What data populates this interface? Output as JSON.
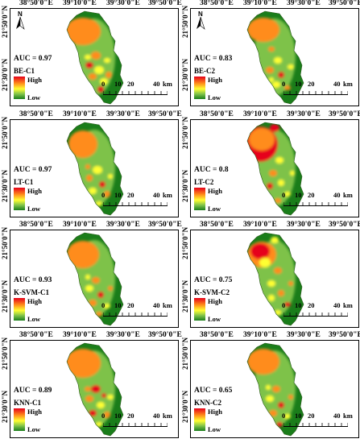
{
  "coords": {
    "top": [
      "38°50'0\"E",
      "39°10'0\"E",
      "39°30'0\"E",
      "39°50'0\"E"
    ],
    "left": [
      "21°50'0\"N",
      "21°30'0\"N"
    ]
  },
  "legend": {
    "high": "High",
    "low": "Low"
  },
  "scale": {
    "ticks": [
      "0",
      "10",
      "20",
      "40"
    ],
    "unit": "km"
  },
  "north_label": "N",
  "panels": [
    {
      "auc": "AUC = 0.97",
      "model": "BE-C1"
    },
    {
      "auc": "AUC = 0.83",
      "model": "BE-C2"
    },
    {
      "auc": "AUC = 0.97",
      "model": "LT-C1"
    },
    {
      "auc": "AUC = 0.8",
      "model": "LT-C2"
    },
    {
      "auc": "AUC = 0.93",
      "model": "K-SVM-C1"
    },
    {
      "auc": "AUC = 0.75",
      "model": "K-SVM-C2"
    },
    {
      "auc": "AUC = 0.89",
      "model": "KNN-C1"
    },
    {
      "auc": "AUC = 0.65",
      "model": "KNN-C2"
    }
  ],
  "colors": {
    "very_high": "#e6001a",
    "high": "#ff8c1a",
    "moderate": "#ffff33",
    "low": "#7ec24a",
    "very_low": "#1a7d1a"
  }
}
